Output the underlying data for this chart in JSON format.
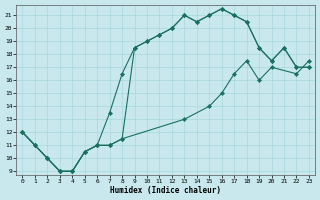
{
  "xlabel": "Humidex (Indice chaleur)",
  "xlim": [
    -0.5,
    23.5
  ],
  "ylim": [
    8.7,
    21.8
  ],
  "yticks": [
    9,
    10,
    11,
    12,
    13,
    14,
    15,
    16,
    17,
    18,
    19,
    20,
    21
  ],
  "xticks": [
    0,
    1,
    2,
    3,
    4,
    5,
    6,
    7,
    8,
    9,
    10,
    11,
    12,
    13,
    14,
    15,
    16,
    17,
    18,
    19,
    20,
    21,
    22,
    23
  ],
  "line_color": "#1a7060",
  "bg_color": "#c8e8ee",
  "grid_color": "#b0d8de",
  "line1_x": [
    0,
    1,
    2,
    3,
    4,
    5,
    6,
    7,
    8,
    9,
    10,
    11,
    12,
    13,
    14,
    15,
    16,
    17,
    18,
    19,
    20,
    21,
    22,
    23
  ],
  "line1_y": [
    12,
    11,
    10,
    9,
    9,
    10.5,
    11,
    11,
    11.5,
    18.5,
    19,
    19.5,
    20,
    21,
    20.5,
    21,
    21.5,
    21,
    20.5,
    18.5,
    17.5,
    18.5,
    17,
    17
  ],
  "line2_x": [
    0,
    1,
    2,
    3,
    4,
    5,
    6,
    7,
    8,
    9,
    10,
    11,
    12,
    13,
    14,
    15,
    16,
    17,
    18,
    19,
    20,
    21,
    22,
    23
  ],
  "line2_y": [
    12,
    11,
    10,
    9,
    9,
    10.5,
    11,
    13.5,
    16.5,
    18.5,
    19,
    19.5,
    20,
    21,
    20.5,
    21,
    21.5,
    21,
    20.5,
    18.5,
    17.5,
    18.5,
    17,
    17
  ],
  "line3_x": [
    0,
    1,
    2,
    3,
    4,
    5,
    6,
    7,
    8,
    13,
    15,
    16,
    17,
    18,
    19,
    20,
    22,
    23
  ],
  "line3_y": [
    12,
    11,
    10,
    9,
    9,
    10.5,
    11,
    11,
    11.5,
    13,
    14,
    15,
    16.5,
    17.5,
    16,
    17,
    16.5,
    17.5
  ]
}
